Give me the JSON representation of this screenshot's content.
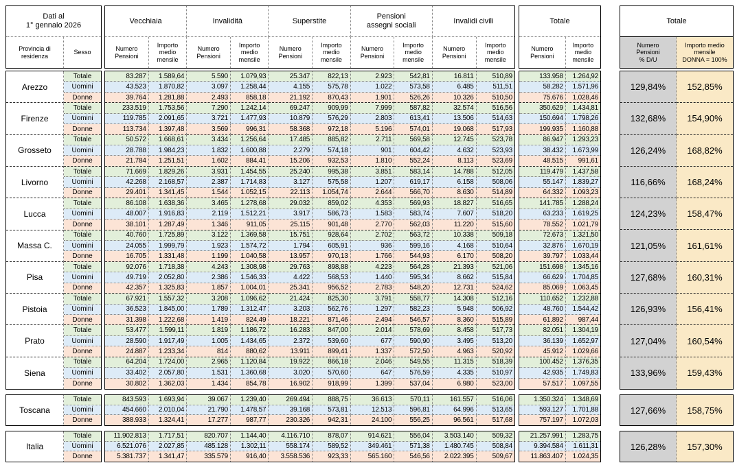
{
  "colors": {
    "row_totale_bg": "#E2EFDA",
    "row_uomini_bg": "#DDEBF7",
    "row_donne_bg": "#FCE4D6",
    "pct_numero_bg": "#D2D2D2",
    "pct_importo_bg": "#FAE9C6",
    "border": "#000000"
  },
  "header": {
    "date_note": "Dati al\n1° gennaio 2026",
    "provincia": "Provincia di\nresidenza",
    "sesso": "Sesso",
    "groups": [
      "Vecchiaia",
      "Invalidità",
      "Superstite",
      "Pensioni\nassegni sociali",
      "Invalidi civili"
    ],
    "totale_label": "Totale",
    "sub_numero": "Numero\nPensioni",
    "sub_importo": "Importo\nmedio\nmensile",
    "right_title": "Totale",
    "right_col1": "Numero\nPensioni\n% D/U",
    "right_col2": "Importo medio\nmensile\nDONNA = 100%"
  },
  "provinces": [
    {
      "name": "Arezzo",
      "pct": [
        "129,84%",
        "152,85%"
      ],
      "rows": [
        {
          "label": "Totale",
          "cells": [
            "83.287",
            "1.589,64",
            "5.590",
            "1.079,93",
            "25.347",
            "822,13",
            "2.923",
            "542,81",
            "16.811",
            "510,89",
            "133.958",
            "1.264,92"
          ]
        },
        {
          "label": "Uomini",
          "cells": [
            "43.523",
            "1.870,82",
            "3.097",
            "1.258,44",
            "4.155",
            "575,78",
            "1.022",
            "573,58",
            "6.485",
            "511,51",
            "58.282",
            "1.571,96"
          ]
        },
        {
          "label": "Donne",
          "cells": [
            "39.764",
            "1.281,88",
            "2.493",
            "858,18",
            "21.192",
            "870,43",
            "1.901",
            "526,26",
            "10.326",
            "510,50",
            "75.676",
            "1.028,46"
          ]
        }
      ]
    },
    {
      "name": "Firenze",
      "pct": [
        "132,68%",
        "154,90%"
      ],
      "rows": [
        {
          "label": "Totale",
          "cells": [
            "233.519",
            "1.753,56",
            "7.290",
            "1.242,14",
            "69.247",
            "909,99",
            "7.999",
            "587,82",
            "32.574",
            "516,56",
            "350.629",
            "1.434,81"
          ]
        },
        {
          "label": "Uomini",
          "cells": [
            "119.785",
            "2.091,65",
            "3.721",
            "1.477,93",
            "10.879",
            "576,29",
            "2.803",
            "613,41",
            "13.506",
            "514,63",
            "150.694",
            "1.798,26"
          ]
        },
        {
          "label": "Donne",
          "cells": [
            "113.734",
            "1.397,48",
            "3.569",
            "996,31",
            "58.368",
            "972,18",
            "5.196",
            "574,01",
            "19.068",
            "517,93",
            "199.935",
            "1.160,88"
          ]
        }
      ]
    },
    {
      "name": "Grosseto",
      "pct": [
        "126,24%",
        "168,82%"
      ],
      "rows": [
        {
          "label": "Totale",
          "cells": [
            "50.572",
            "1.668,61",
            "3.434",
            "1.256,64",
            "17.485",
            "885,82",
            "2.711",
            "569,58",
            "12.745",
            "523,78",
            "86.947",
            "1.293,23"
          ]
        },
        {
          "label": "Uomini",
          "cells": [
            "28.788",
            "1.984,23",
            "1.832",
            "1.600,88",
            "2.279",
            "574,18",
            "901",
            "604,42",
            "4.632",
            "523,93",
            "38.432",
            "1.673,99"
          ]
        },
        {
          "label": "Donne",
          "cells": [
            "21.784",
            "1.251,51",
            "1.602",
            "884,41",
            "15.206",
            "932,53",
            "1.810",
            "552,24",
            "8.113",
            "523,69",
            "48.515",
            "991,61"
          ]
        }
      ]
    },
    {
      "name": "Livorno",
      "pct": [
        "116,66%",
        "168,24%"
      ],
      "rows": [
        {
          "label": "Totale",
          "cells": [
            "71.669",
            "1.829,26",
            "3.931",
            "1.454,55",
            "25.240",
            "995,38",
            "3.851",
            "583,14",
            "14.788",
            "512,05",
            "119.479",
            "1.437,58"
          ]
        },
        {
          "label": "Uomini",
          "cells": [
            "42.268",
            "2.168,57",
            "2.387",
            "1.714,83",
            "3.127",
            "575,58",
            "1.207",
            "619,17",
            "6.158",
            "508,06",
            "55.147",
            "1.839,27"
          ]
        },
        {
          "label": "Donne",
          "cells": [
            "29.401",
            "1.341,45",
            "1.544",
            "1.052,15",
            "22.113",
            "1.054,74",
            "2.644",
            "566,70",
            "8.630",
            "514,89",
            "64.332",
            "1.093,23"
          ]
        }
      ]
    },
    {
      "name": "Lucca",
      "pct": [
        "124,23%",
        "158,47%"
      ],
      "rows": [
        {
          "label": "Totale",
          "cells": [
            "86.108",
            "1.638,36",
            "3.465",
            "1.278,68",
            "29.032",
            "859,02",
            "4.353",
            "569,93",
            "18.827",
            "516,65",
            "141.785",
            "1.288,24"
          ]
        },
        {
          "label": "Uomini",
          "cells": [
            "48.007",
            "1.916,83",
            "2.119",
            "1.512,21",
            "3.917",
            "586,73",
            "1.583",
            "583,74",
            "7.607",
            "518,20",
            "63.233",
            "1.619,25"
          ]
        },
        {
          "label": "Donne",
          "cells": [
            "38.101",
            "1.287,49",
            "1.346",
            "911,05",
            "25.115",
            "901,48",
            "2.770",
            "562,03",
            "11.220",
            "515,60",
            "78.552",
            "1.021,79"
          ]
        }
      ]
    },
    {
      "name": "Massa C.",
      "pct": [
        "121,05%",
        "161,61%"
      ],
      "rows": [
        {
          "label": "Totale",
          "cells": [
            "40.760",
            "1.725,89",
            "3.122",
            "1.369,58",
            "15.751",
            "928,64",
            "2.702",
            "563,72",
            "10.338",
            "509,18",
            "72.673",
            "1.321,50"
          ]
        },
        {
          "label": "Uomini",
          "cells": [
            "24.055",
            "1.999,79",
            "1.923",
            "1.574,72",
            "1.794",
            "605,91",
            "936",
            "599,16",
            "4.168",
            "510,64",
            "32.876",
            "1.670,19"
          ]
        },
        {
          "label": "Donne",
          "cells": [
            "16.705",
            "1.331,48",
            "1.199",
            "1.040,58",
            "13.957",
            "970,13",
            "1.766",
            "544,93",
            "6.170",
            "508,20",
            "39.797",
            "1.033,44"
          ]
        }
      ]
    },
    {
      "name": "Pisa",
      "pct": [
        "127,68%",
        "160,31%"
      ],
      "rows": [
        {
          "label": "Totale",
          "cells": [
            "92.076",
            "1.718,38",
            "4.243",
            "1.308,98",
            "29.763",
            "898,88",
            "4.223",
            "564,28",
            "21.393",
            "521,06",
            "151.698",
            "1.345,16"
          ]
        },
        {
          "label": "Uomini",
          "cells": [
            "49.719",
            "2.052,80",
            "2.386",
            "1.546,33",
            "4.422",
            "568,53",
            "1.440",
            "595,34",
            "8.662",
            "515,84",
            "66.629",
            "1.704,85"
          ]
        },
        {
          "label": "Donne",
          "cells": [
            "42.357",
            "1.325,83",
            "1.857",
            "1.004,01",
            "25.341",
            "956,52",
            "2.783",
            "548,20",
            "12.731",
            "524,62",
            "85.069",
            "1.063,45"
          ]
        }
      ]
    },
    {
      "name": "Pistoia",
      "pct": [
        "126,93%",
        "156,41%"
      ],
      "rows": [
        {
          "label": "Totale",
          "cells": [
            "67.921",
            "1.557,32",
            "3.208",
            "1.096,62",
            "21.424",
            "825,30",
            "3.791",
            "558,77",
            "14.308",
            "512,16",
            "110.652",
            "1.232,88"
          ]
        },
        {
          "label": "Uomini",
          "cells": [
            "36.523",
            "1.845,00",
            "1.789",
            "1.312,47",
            "3.203",
            "562,76",
            "1.297",
            "582,23",
            "5.948",
            "506,92",
            "48.760",
            "1.544,42"
          ]
        },
        {
          "label": "Donne",
          "cells": [
            "31.398",
            "1.222,68",
            "1.419",
            "824,49",
            "18.221",
            "871,46",
            "2.494",
            "546,57",
            "8.360",
            "515,89",
            "61.892",
            "987,44"
          ]
        }
      ]
    },
    {
      "name": "Prato",
      "pct": [
        "127,04%",
        "160,54%"
      ],
      "rows": [
        {
          "label": "Totale",
          "cells": [
            "53.477",
            "1.599,11",
            "1.819",
            "1.186,72",
            "16.283",
            "847,00",
            "2.014",
            "578,69",
            "8.458",
            "517,73",
            "82.051",
            "1.304,19"
          ]
        },
        {
          "label": "Uomini",
          "cells": [
            "28.590",
            "1.917,49",
            "1.005",
            "1.434,65",
            "2.372",
            "539,60",
            "677",
            "590,90",
            "3.495",
            "513,20",
            "36.139",
            "1.652,97"
          ]
        },
        {
          "label": "Donne",
          "cells": [
            "24.887",
            "1.233,34",
            "814",
            "880,62",
            "13.911",
            "899,41",
            "1.337",
            "572,50",
            "4.963",
            "520,92",
            "45.912",
            "1.029,66"
          ]
        }
      ]
    },
    {
      "name": "Siena",
      "pct": [
        "133,96%",
        "159,43%"
      ],
      "rows": [
        {
          "label": "Totale",
          "cells": [
            "64.204",
            "1.724,00",
            "2.965",
            "1.120,84",
            "19.922",
            "866,18",
            "2.046",
            "549,55",
            "11.315",
            "518,39",
            "100.452",
            "1.376,35"
          ]
        },
        {
          "label": "Uomini",
          "cells": [
            "33.402",
            "2.057,80",
            "1.531",
            "1.360,68",
            "3.020",
            "570,60",
            "647",
            "576,59",
            "4.335",
            "510,97",
            "42.935",
            "1.749,83"
          ]
        },
        {
          "label": "Donne",
          "cells": [
            "30.802",
            "1.362,03",
            "1.434",
            "854,78",
            "16.902",
            "918,99",
            "1.399",
            "537,04",
            "6.980",
            "523,00",
            "57.517",
            "1.097,55"
          ]
        }
      ]
    }
  ],
  "totals": [
    {
      "name": "Toscana",
      "pct": [
        "127,66%",
        "158,75%"
      ],
      "rows": [
        {
          "label": "Totale",
          "cells": [
            "843.593",
            "1.693,94",
            "39.067",
            "1.239,40",
            "269.494",
            "888,75",
            "36.613",
            "570,11",
            "161.557",
            "516,06",
            "1.350.324",
            "1.348,69"
          ]
        },
        {
          "label": "Uomini",
          "cells": [
            "454.660",
            "2.010,04",
            "21.790",
            "1.478,57",
            "39.168",
            "573,81",
            "12.513",
            "596,81",
            "64.996",
            "513,65",
            "593.127",
            "1.701,88"
          ]
        },
        {
          "label": "Donne",
          "cells": [
            "388.933",
            "1.324,41",
            "17.277",
            "987,77",
            "230.326",
            "942,31",
            "24.100",
            "556,25",
            "96.561",
            "517,68",
            "757.197",
            "1.072,03"
          ]
        }
      ]
    }
  ],
  "country": [
    {
      "name": "Italia",
      "pct": [
        "126,28%",
        "157,30%"
      ],
      "rows": [
        {
          "label": "Totale",
          "cells": [
            "11.902.813",
            "1.717,51",
            "820.707",
            "1.144,40",
            "4.116.710",
            "878,07",
            "914.621",
            "556,04",
            "3.503.140",
            "509,32",
            "21.257.991",
            "1.283,75"
          ]
        },
        {
          "label": "Uomini",
          "cells": [
            "6.521.076",
            "2.027,85",
            "485.128",
            "1.302,11",
            "558.174",
            "589,52",
            "349.461",
            "571,38",
            "1.480.745",
            "508,84",
            "9.394.584",
            "1.611,31"
          ]
        },
        {
          "label": "Donne",
          "cells": [
            "5.381.737",
            "1.341,47",
            "335.579",
            "916,40",
            "3.558.536",
            "923,33",
            "565.160",
            "546,56",
            "2.022.395",
            "509,67",
            "11.863.407",
            "1.024,35"
          ]
        }
      ]
    }
  ]
}
